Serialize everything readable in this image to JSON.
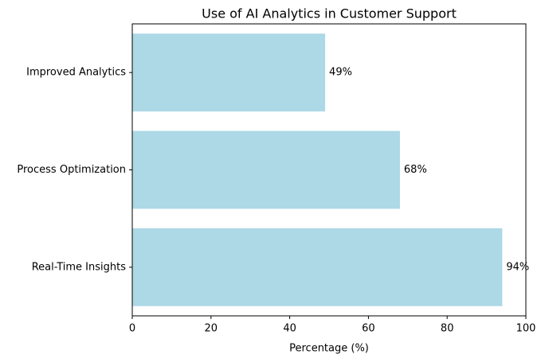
{
  "chart_data": {
    "type": "barh",
    "title": "Use of AI Analytics in Customer Support",
    "xlabel": "Percentage (%)",
    "categories": [
      "Real-Time Insights",
      "Process Optimization",
      "Improved Analytics"
    ],
    "values": [
      94,
      68,
      49
    ],
    "value_labels": [
      "94%",
      "68%",
      "49%"
    ],
    "color": "#add8e6",
    "xlim": [
      0,
      100
    ],
    "xticks": [
      0,
      20,
      40,
      60,
      80,
      100
    ]
  }
}
